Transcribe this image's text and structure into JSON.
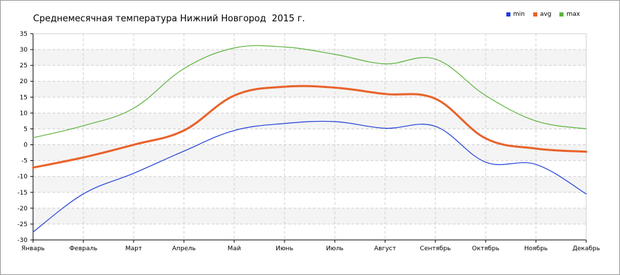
{
  "chart_data": {
    "type": "line",
    "title": "Среднемесячная температура Нижний Новгород  2015 г.",
    "categories": [
      "Январь",
      "Февраль",
      "Март",
      "Апрель",
      "Май",
      "Июнь",
      "Июль",
      "Август",
      "Сентябрь",
      "Октябрь",
      "Ноябрь",
      "Декабрь"
    ],
    "ylim": [
      -30,
      35
    ],
    "yticks": [
      -30,
      -25,
      -20,
      -15,
      -10,
      -5,
      0,
      5,
      10,
      15,
      20,
      25,
      30,
      35
    ],
    "grid": true,
    "legend_position": "top-right",
    "series": [
      {
        "name": "min",
        "color": "#1f3fd6",
        "values": [
          -27.5,
          -15.5,
          -9,
          -2,
          4.5,
          6.7,
          7.3,
          5.2,
          5.8,
          -5.5,
          -6.2,
          -15.5
        ]
      },
      {
        "name": "avg",
        "color": "#e8622a",
        "values": [
          -7.2,
          -4,
          0,
          4.5,
          15.5,
          18.3,
          18,
          16,
          14.5,
          2,
          -1.2,
          -2.2
        ]
      },
      {
        "name": "max",
        "color": "#5bb33d",
        "values": [
          2.2,
          6,
          11.5,
          24,
          30.5,
          30.8,
          28.5,
          25.5,
          27,
          15.5,
          7.5,
          5
        ]
      }
    ]
  }
}
